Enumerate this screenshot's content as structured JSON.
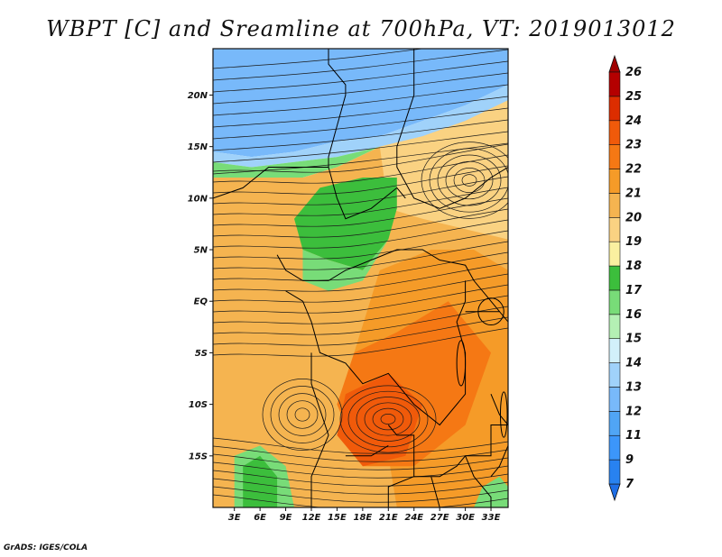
{
  "title": "WBPT [C] and Sreamline at 700hPa, VT: 2019013012",
  "footer": "GrADS: IGES/COLA",
  "axes": {
    "lat_ticks": [
      {
        "value": 20,
        "label": "20N"
      },
      {
        "value": 15,
        "label": "15N"
      },
      {
        "value": 10,
        "label": "10N"
      },
      {
        "value": 5,
        "label": "5N"
      },
      {
        "value": 0,
        "label": "EQ"
      },
      {
        "value": -5,
        "label": "5S"
      },
      {
        "value": -10,
        "label": "10S"
      },
      {
        "value": -15,
        "label": "15S"
      }
    ],
    "lon_ticks": [
      {
        "value": 3,
        "label": "3E"
      },
      {
        "value": 6,
        "label": "6E"
      },
      {
        "value": 9,
        "label": "9E"
      },
      {
        "value": 12,
        "label": "12E"
      },
      {
        "value": 15,
        "label": "15E"
      },
      {
        "value": 18,
        "label": "18E"
      },
      {
        "value": 21,
        "label": "21E"
      },
      {
        "value": 24,
        "label": "24E"
      },
      {
        "value": 27,
        "label": "27E"
      },
      {
        "value": 30,
        "label": "30E"
      },
      {
        "value": 33,
        "label": "33E"
      }
    ],
    "lon_range": [
      0.5,
      35
    ],
    "lat_range": [
      -20,
      24.5
    ]
  },
  "colorbar": {
    "labels": [
      "7",
      "9",
      "11",
      "12",
      "13",
      "14",
      "15",
      "16",
      "17",
      "18",
      "19",
      "20",
      "21",
      "22",
      "23",
      "24",
      "25",
      "26"
    ],
    "colors": [
      "#1e6ee6",
      "#2882f0",
      "#3c96fa",
      "#50a5f5",
      "#78b9fa",
      "#a0d2fa",
      "#d2f0fa",
      "#b4f0b4",
      "#78dc78",
      "#3cbe3c",
      "#faf0a0",
      "#fad282",
      "#f5b450",
      "#f59b28",
      "#f57814",
      "#f05a0a",
      "#dc2d00",
      "#b40000",
      "#a00000"
    ]
  },
  "regions": [
    {
      "color": "#78b9fa",
      "points": [
        [
          0.5,
          24.5
        ],
        [
          35,
          24.5
        ],
        [
          35,
          21
        ],
        [
          30,
          19
        ],
        [
          25,
          17.5
        ],
        [
          20,
          16
        ],
        [
          15,
          15.5
        ],
        [
          10,
          14.5
        ],
        [
          5,
          14
        ],
        [
          0.5,
          14.5
        ]
      ]
    },
    {
      "color": "#a0d2fa",
      "points": [
        [
          35,
          21
        ],
        [
          30,
          19
        ],
        [
          25,
          17.5
        ],
        [
          20,
          16
        ],
        [
          15,
          15.5
        ],
        [
          10,
          14.5
        ],
        [
          5,
          14
        ],
        [
          0.5,
          14.5
        ],
        [
          0.5,
          13.5
        ],
        [
          5,
          13
        ],
        [
          10,
          13.5
        ],
        [
          15,
          14
        ],
        [
          20,
          15
        ],
        [
          25,
          16
        ],
        [
          30,
          17.5
        ],
        [
          35,
          19.5
        ]
      ]
    },
    {
      "color": "#78dc78",
      "points": [
        [
          0.5,
          13.5
        ],
        [
          5,
          13
        ],
        [
          10,
          13.5
        ],
        [
          15,
          14
        ],
        [
          20,
          15
        ],
        [
          15,
          13
        ],
        [
          11,
          12
        ],
        [
          6,
          12
        ],
        [
          0.5,
          12
        ]
      ]
    },
    {
      "color": "#f5b450",
      "points": [
        [
          0.5,
          12
        ],
        [
          6,
          12
        ],
        [
          11,
          12
        ],
        [
          15,
          13
        ],
        [
          20,
          15
        ],
        [
          25,
          16
        ],
        [
          30,
          17.5
        ],
        [
          35,
          19.5
        ],
        [
          35,
          -20
        ],
        [
          0.5,
          -20
        ]
      ]
    },
    {
      "color": "#fad282",
      "points": [
        [
          20,
          15
        ],
        [
          25,
          16
        ],
        [
          30,
          17.5
        ],
        [
          35,
          19.5
        ],
        [
          35,
          6
        ],
        [
          30,
          7
        ],
        [
          25,
          8
        ],
        [
          21,
          9
        ]
      ]
    },
    {
      "color": "#3cbe3c",
      "points": [
        [
          13,
          11
        ],
        [
          18,
          12
        ],
        [
          22,
          12
        ],
        [
          22,
          9
        ],
        [
          21,
          6
        ],
        [
          18,
          3
        ],
        [
          14,
          4
        ],
        [
          11,
          5
        ],
        [
          10,
          8
        ]
      ]
    },
    {
      "color": "#78dc78",
      "points": [
        [
          11,
          5
        ],
        [
          14,
          4
        ],
        [
          18,
          3
        ],
        [
          20,
          5
        ],
        [
          21,
          6
        ],
        [
          18,
          2
        ],
        [
          14,
          1
        ],
        [
          11,
          2
        ]
      ]
    },
    {
      "color": "#f59b28",
      "points": [
        [
          20,
          3
        ],
        [
          26,
          5
        ],
        [
          31,
          5
        ],
        [
          35,
          3
        ],
        [
          35,
          -20
        ],
        [
          22,
          -20
        ],
        [
          20,
          -10
        ],
        [
          17,
          -5
        ]
      ]
    },
    {
      "color": "#f57814",
      "points": [
        [
          17,
          -5
        ],
        [
          22,
          -3
        ],
        [
          28,
          0
        ],
        [
          33,
          -5
        ],
        [
          30,
          -12
        ],
        [
          24,
          -16
        ],
        [
          18,
          -16
        ],
        [
          15,
          -10
        ]
      ]
    },
    {
      "color": "#f05a0a",
      "points": [
        [
          16,
          -9
        ],
        [
          21,
          -7
        ],
        [
          25,
          -10
        ],
        [
          23,
          -15
        ],
        [
          18,
          -16
        ],
        [
          15,
          -13
        ]
      ]
    },
    {
      "color": "#78dc78",
      "points": [
        [
          3,
          -15
        ],
        [
          6,
          -14
        ],
        [
          9,
          -16
        ],
        [
          10,
          -20
        ],
        [
          3,
          -20
        ]
      ]
    },
    {
      "color": "#3cbe3c",
      "points": [
        [
          4,
          -16
        ],
        [
          6,
          -15
        ],
        [
          8,
          -17
        ],
        [
          8,
          -20
        ],
        [
          4,
          -20
        ]
      ]
    },
    {
      "color": "#78dc78",
      "points": [
        [
          32,
          -18
        ],
        [
          34,
          -17
        ],
        [
          35,
          -18
        ],
        [
          35,
          -20
        ],
        [
          31,
          -20
        ]
      ]
    }
  ]
}
